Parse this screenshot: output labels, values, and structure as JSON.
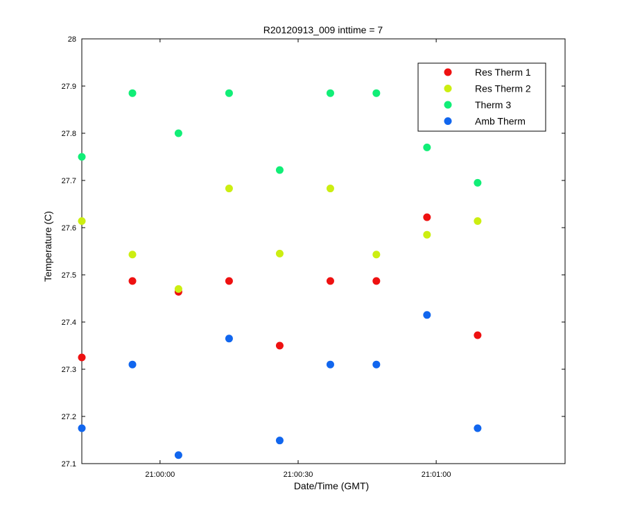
{
  "chart_data": {
    "type": "scatter",
    "title": "R20120913_009 inttime = 7",
    "xlabel": "Date/Time (GMT)",
    "ylabel": "Temperature (C)",
    "x_unit": "time HH:MM:SS",
    "xlim": [
      "20:59:43",
      "21:01:28"
    ],
    "ylim": [
      27.1,
      28.0
    ],
    "x_ticks": [
      "21:00:00",
      "21:00:30",
      "21:01:00"
    ],
    "y_ticks": [
      "27.1",
      "27.2",
      "27.3",
      "27.4",
      "27.5",
      "27.6",
      "27.7",
      "27.8",
      "27.9",
      "28"
    ],
    "grid": false,
    "legend_position": "top-right",
    "x": [
      "20:59:43",
      "20:59:54",
      "21:00:04",
      "21:00:15",
      "21:00:26",
      "21:00:37",
      "21:00:47",
      "21:00:58",
      "21:01:09"
    ],
    "series": [
      {
        "name": "Res Therm 1",
        "color": "#ee1111",
        "values": [
          27.325,
          27.487,
          27.464,
          27.487,
          27.35,
          27.487,
          27.487,
          27.622,
          27.372
        ]
      },
      {
        "name": "Res Therm 2",
        "color": "#ccee11",
        "values": [
          27.614,
          27.543,
          27.47,
          27.683,
          27.545,
          27.683,
          27.543,
          27.585,
          27.614
        ]
      },
      {
        "name": "Therm 3",
        "color": "#11ee77",
        "values": [
          27.75,
          27.885,
          27.8,
          27.885,
          27.722,
          27.885,
          27.885,
          27.77,
          27.695
        ]
      },
      {
        "name": "Amb Therm",
        "color": "#1166ee",
        "values": [
          27.175,
          27.31,
          27.118,
          27.365,
          27.149,
          27.31,
          27.31,
          27.415,
          27.175
        ]
      }
    ]
  }
}
